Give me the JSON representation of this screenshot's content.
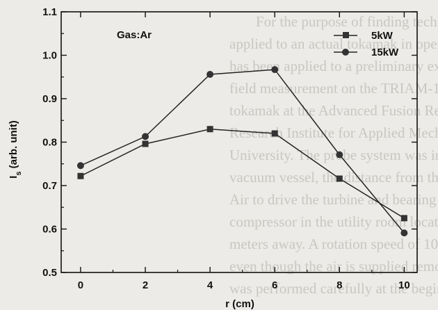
{
  "chart_data": {
    "type": "line",
    "xlabel": "r (cm)",
    "ylabel": "I_s (arb. unit)",
    "xlim": [
      -0.6,
      10.4
    ],
    "ylim": [
      0.5,
      1.1
    ],
    "xticks": [
      "0",
      "2",
      "4",
      "6",
      "8",
      "10"
    ],
    "yticks": [
      "0.5",
      "0.6",
      "0.7",
      "0.8",
      "0.9",
      "1.0",
      "1.1"
    ],
    "annotation": "Gas:Ar",
    "legend_position": "top-right",
    "grid": false,
    "x": [
      0,
      2,
      4,
      6,
      8,
      10
    ],
    "series": [
      {
        "name": "5kW",
        "marker": "square",
        "values": [
          0.722,
          0.796,
          0.83,
          0.82,
          0.716,
          0.625
        ]
      },
      {
        "name": "15kW",
        "marker": "circle",
        "values": [
          0.746,
          0.813,
          0.956,
          0.967,
          0.771,
          0.591
        ]
      }
    ]
  }
}
